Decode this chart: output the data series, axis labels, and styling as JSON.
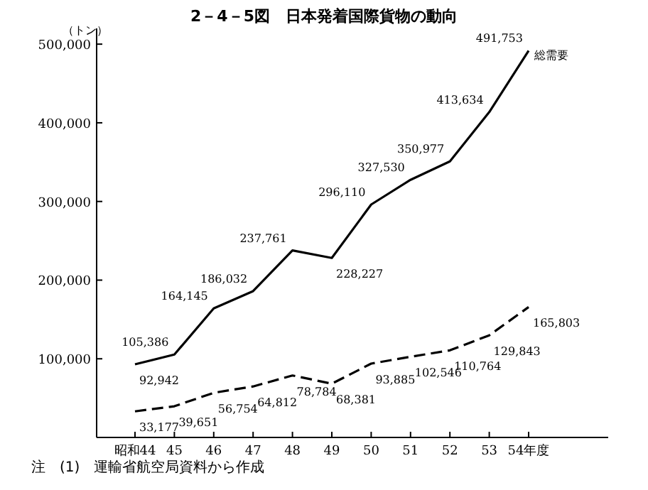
{
  "chart_data": {
    "type": "line",
    "title": "2－4－5図　日本発着国際貨物の動向",
    "ylabel": "（トン）",
    "categories": [
      "昭和44",
      "45",
      "46",
      "47",
      "48",
      "49",
      "50",
      "51",
      "52",
      "53",
      "54年度"
    ],
    "series": [
      {
        "name": "総需要",
        "color": "#000000",
        "line_style": "solid",
        "values": [
          92942,
          105386,
          164145,
          186032,
          237761,
          228227,
          296110,
          327530,
          350977,
          413634,
          491753
        ],
        "value_labels": [
          "92,942",
          "105,386",
          "164,145",
          "186,032",
          "237,761",
          "228,227",
          "296,110",
          "327,530",
          "350,977",
          "413,634",
          "491,753"
        ]
      },
      {
        "color": "#000000",
        "line_style": "dashed",
        "values": [
          33177,
          39651,
          56754,
          64812,
          78784,
          68381,
          93885,
          102546,
          110764,
          129843,
          165803
        ],
        "value_labels": [
          "33,177",
          "39,651",
          "56,754",
          "64,812",
          "78,784",
          "68,381",
          "93,885",
          "102,546",
          "110,764",
          "129,843",
          "165,803"
        ]
      }
    ],
    "ylim": [
      0,
      520000
    ],
    "yticks": [
      {
        "value": 100000,
        "label": "100,000"
      },
      {
        "value": 200000,
        "label": "200,000"
      },
      {
        "value": 300000,
        "label": "300,000"
      },
      {
        "value": 400000,
        "label": "400,000"
      },
      {
        "value": 500000,
        "label": "500,000"
      }
    ],
    "annotations": [
      "注　(1)　運輸省航空局資料から作成"
    ]
  }
}
